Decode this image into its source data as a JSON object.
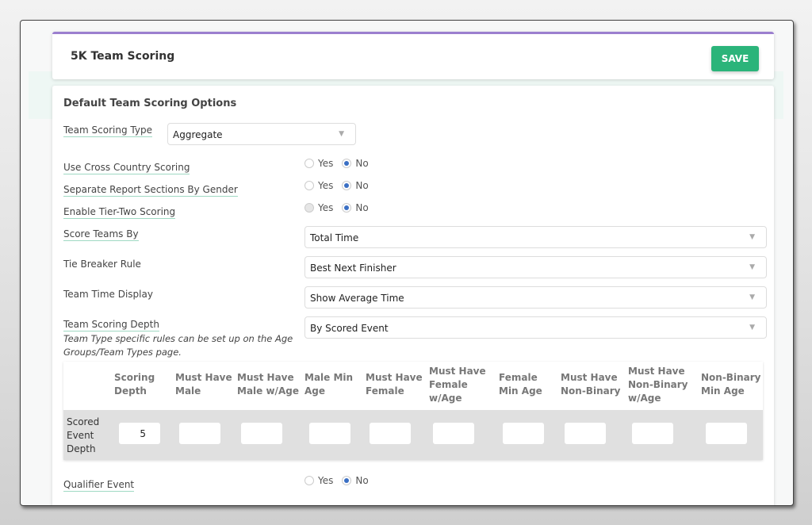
{
  "header": {
    "title": "5K Team Scoring",
    "save_label": "SAVE"
  },
  "section": {
    "heading": "Default Team Scoring Options"
  },
  "fields": {
    "team_scoring_type": {
      "label": "Team Scoring Type",
      "value": "Aggregate"
    },
    "cross_country": {
      "label": "Use Cross Country Scoring",
      "yes": "Yes",
      "no": "No",
      "selected": "No"
    },
    "separate_gender": {
      "label": "Separate Report Sections By Gender",
      "yes": "Yes",
      "no": "No",
      "selected": "No"
    },
    "tier_two": {
      "label": "Enable Tier-Two Scoring",
      "yes": "Yes",
      "no": "No",
      "selected": "No"
    },
    "score_teams_by": {
      "label": "Score Teams By",
      "value": "Total Time"
    },
    "tie_breaker": {
      "label": "Tie Breaker Rule",
      "value": "Best Next Finisher"
    },
    "team_time_display": {
      "label": "Team Time Display",
      "value": "Show Average Time"
    },
    "team_scoring_depth": {
      "label": "Team Scoring Depth",
      "value": "By Scored Event",
      "note": "Team Type specific rules can be set up on the Age Groups/Team Types page."
    },
    "qualifier": {
      "label": "Qualifier Event",
      "yes": "Yes",
      "no": "No",
      "selected": "No"
    }
  },
  "table": {
    "headers": [
      "Scoring Depth",
      "Must Have Male",
      "Must Have Male w/Age",
      "Male Min Age",
      "Must Have Female",
      "Must Have Female w/Age",
      "Female Min Age",
      "Must Have Non-Binary",
      "Must Have Non-Binary w/Age",
      "Non-Binary Min Age"
    ],
    "row_label": "Scored Event Depth",
    "values": [
      "5",
      "",
      "",
      "",
      "",
      "",
      "",
      "",
      "",
      ""
    ]
  },
  "colors": {
    "accent": "#9b7fcf",
    "save": "#2bb47a",
    "radio": "#3a6fc4"
  }
}
